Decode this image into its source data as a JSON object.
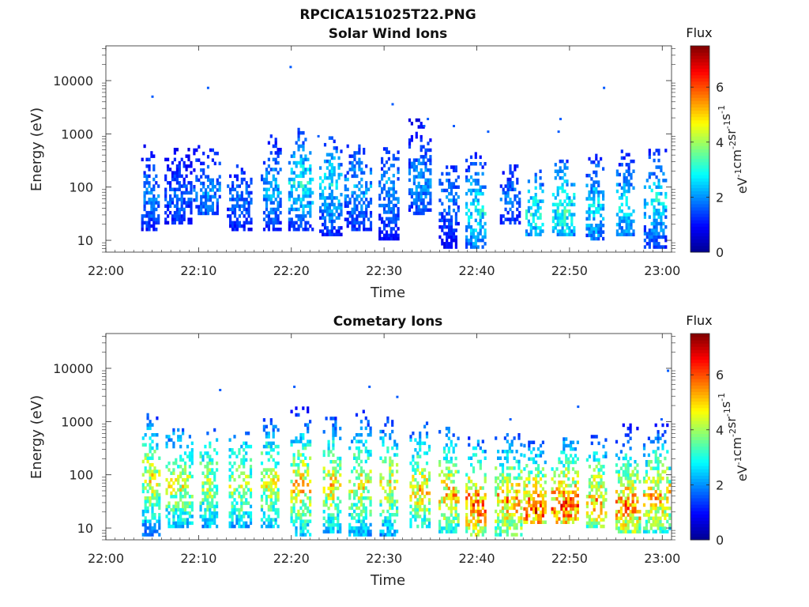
{
  "figure_title": "RPCICA151025T22.PNG",
  "chart_data": [
    {
      "type": "heatmap",
      "title": "Solar Wind Ions",
      "xlabel": "Time",
      "ylabel": "Energy (eV)",
      "x_ticks": [
        "22:00",
        "22:10",
        "22:20",
        "22:30",
        "22:40",
        "22:50",
        "23:00"
      ],
      "x_range_minutes": [
        0,
        61
      ],
      "y_ticks": [
        "10",
        "100",
        "1000",
        "10000"
      ],
      "y_scale": "log",
      "y_range": [
        6,
        45000
      ],
      "colorbar": {
        "label": "Flux",
        "unit_parts": [
          "eV",
          "-1",
          "cm",
          "-2",
          "sr",
          "-1",
          "s",
          "-1"
        ],
        "ticks": [
          "0",
          "2",
          "4",
          "6"
        ],
        "range": [
          0,
          7.5
        ]
      },
      "bursts": [
        {
          "t": 4.7,
          "lo": 15,
          "hi": 600,
          "peak": 2.2,
          "peak_e": 70
        },
        {
          "t": 7.8,
          "lo": 20,
          "hi": 500,
          "peak": 1.9,
          "peak_e": 60
        },
        {
          "t": 10.9,
          "lo": 30,
          "hi": 600,
          "peak": 2.2,
          "peak_e": 80
        },
        {
          "t": 14.4,
          "lo": 15,
          "hi": 300,
          "peak": 2.0,
          "peak_e": 60
        },
        {
          "t": 17.8,
          "lo": 15,
          "hi": 900,
          "peak": 2.5,
          "peak_e": 90
        },
        {
          "t": 21.0,
          "lo": 15,
          "hi": 1200,
          "peak": 3.2,
          "peak_e": 120
        },
        {
          "t": 24.2,
          "lo": 12,
          "hi": 800,
          "peak": 3.0,
          "peak_e": 110
        },
        {
          "t": 27.2,
          "lo": 15,
          "hi": 600,
          "peak": 2.5,
          "peak_e": 90
        },
        {
          "t": 30.5,
          "lo": 10,
          "hi": 500,
          "peak": 2.4,
          "peak_e": 80
        },
        {
          "t": 33.8,
          "lo": 30,
          "hi": 1800,
          "peak": 2.4,
          "peak_e": 120
        },
        {
          "t": 36.9,
          "lo": 7,
          "hi": 300,
          "peak": 2.2,
          "peak_e": 60
        },
        {
          "t": 39.8,
          "lo": 7,
          "hi": 400,
          "peak": 3.2,
          "peak_e": 35
        },
        {
          "t": 43.5,
          "lo": 20,
          "hi": 300,
          "peak": 2.0,
          "peak_e": 60
        },
        {
          "t": 46.2,
          "lo": 12,
          "hi": 200,
          "peak": 3.2,
          "peak_e": 30
        },
        {
          "t": 49.3,
          "lo": 12,
          "hi": 300,
          "peak": 3.4,
          "peak_e": 35
        },
        {
          "t": 52.7,
          "lo": 10,
          "hi": 400,
          "peak": 3.0,
          "peak_e": 40
        },
        {
          "t": 56.0,
          "lo": 12,
          "hi": 500,
          "peak": 3.0,
          "peak_e": 40
        },
        {
          "t": 59.2,
          "lo": 7,
          "hi": 500,
          "peak": 3.0,
          "peak_e": 50
        }
      ],
      "isolated_points": [
        [
          4.9,
          5000
        ],
        [
          10.9,
          7300
        ],
        [
          19.8,
          18000
        ],
        [
          30.8,
          3600
        ],
        [
          34.6,
          1900
        ],
        [
          37.4,
          1400
        ],
        [
          41.1,
          1100
        ],
        [
          48.9,
          1900
        ],
        [
          48.7,
          1100
        ],
        [
          53.6,
          7300
        ],
        [
          34.2,
          1400
        ],
        [
          22.8,
          900
        ]
      ]
    },
    {
      "type": "heatmap",
      "title": "Cometary Ions",
      "xlabel": "Time",
      "ylabel": "Energy (eV)",
      "x_ticks": [
        "22:00",
        "22:10",
        "22:20",
        "22:30",
        "22:40",
        "22:50",
        "23:00"
      ],
      "x_range_minutes": [
        0,
        61
      ],
      "y_ticks": [
        "10",
        "100",
        "1000",
        "10000"
      ],
      "y_scale": "log",
      "y_range": [
        6,
        45000
      ],
      "colorbar": {
        "label": "Flux",
        "unit_parts": [
          "eV",
          "-1",
          "cm",
          "-2",
          "sr",
          "-1",
          "s",
          "-1"
        ],
        "ticks": [
          "0",
          "2",
          "4",
          "6"
        ],
        "range": [
          0,
          7.5
        ]
      },
      "bursts": [
        {
          "t": 4.8,
          "lo": 7,
          "hi": 1300,
          "peak": 5.0,
          "peak_e": 80
        },
        {
          "t": 7.9,
          "lo": 10,
          "hi": 700,
          "peak": 4.8,
          "peak_e": 60
        },
        {
          "t": 11.0,
          "lo": 10,
          "hi": 700,
          "peak": 4.7,
          "peak_e": 70
        },
        {
          "t": 14.4,
          "lo": 10,
          "hi": 600,
          "peak": 4.6,
          "peak_e": 60
        },
        {
          "t": 17.6,
          "lo": 10,
          "hi": 1000,
          "peak": 5.0,
          "peak_e": 70
        },
        {
          "t": 21.0,
          "lo": 7,
          "hi": 1800,
          "peak": 5.5,
          "peak_e": 60
        },
        {
          "t": 24.3,
          "lo": 8,
          "hi": 1200,
          "peak": 5.2,
          "peak_e": 60
        },
        {
          "t": 27.4,
          "lo": 7,
          "hi": 1500,
          "peak": 5.0,
          "peak_e": 60
        },
        {
          "t": 30.5,
          "lo": 7,
          "hi": 1200,
          "peak": 5.0,
          "peak_e": 60
        },
        {
          "t": 33.8,
          "lo": 10,
          "hi": 900,
          "peak": 5.3,
          "peak_e": 50
        },
        {
          "t": 36.9,
          "lo": 8,
          "hi": 700,
          "peak": 5.5,
          "peak_e": 40
        },
        {
          "t": 39.8,
          "lo": 7,
          "hi": 500,
          "peak": 6.3,
          "peak_e": 25
        },
        {
          "t": 43.3,
          "lo": 7,
          "hi": 600,
          "peak": 5.8,
          "peak_e": 30
        },
        {
          "t": 46.2,
          "lo": 12,
          "hi": 400,
          "peak": 6.5,
          "peak_e": 20
        },
        {
          "t": 49.5,
          "lo": 12,
          "hi": 500,
          "peak": 6.3,
          "peak_e": 25
        },
        {
          "t": 52.8,
          "lo": 10,
          "hi": 500,
          "peak": 5.6,
          "peak_e": 30
        },
        {
          "t": 56.2,
          "lo": 8,
          "hi": 800,
          "peak": 6.0,
          "peak_e": 25
        },
        {
          "t": 59.3,
          "lo": 8,
          "hi": 900,
          "peak": 5.5,
          "peak_e": 35
        }
      ],
      "isolated_points": [
        [
          12.2,
          3900
        ],
        [
          20.2,
          4500
        ],
        [
          28.3,
          4500
        ],
        [
          31.3,
          2900
        ],
        [
          43.5,
          1100
        ],
        [
          50.8,
          1900
        ],
        [
          59.8,
          1100
        ],
        [
          60.5,
          9000
        ]
      ]
    }
  ],
  "colormap": [
    "#00008f",
    "#0000ff",
    "#007fff",
    "#00ffff",
    "#7fff7f",
    "#ffff00",
    "#ff7f00",
    "#ff0000",
    "#7f0000"
  ]
}
